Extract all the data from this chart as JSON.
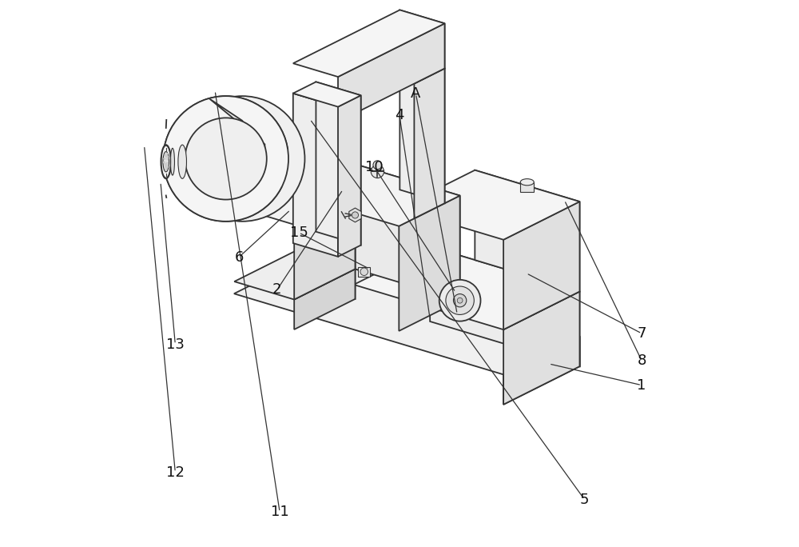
{
  "bg_color": "#ffffff",
  "line_color": "#333333",
  "lw_main": 1.3,
  "lw_thin": 0.8,
  "face_top": "#f5f5f5",
  "face_front": "#ececec",
  "face_right": "#e0e0e0",
  "face_dark": "#d5d5d5",
  "figsize": [
    10.0,
    6.84
  ],
  "dpi": 100,
  "ox": 0.42,
  "oy": 0.52,
  "sx": 0.055,
  "sy": 0.028,
  "sz": 0.055
}
